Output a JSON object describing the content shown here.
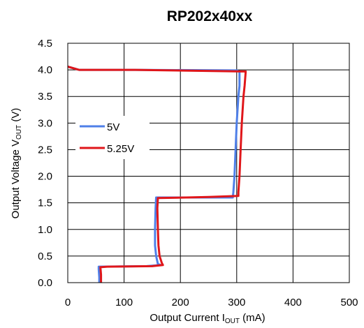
{
  "chart_data": {
    "type": "line",
    "title": "RP202x40xx",
    "xlabel": {
      "main": "Output Current I",
      "sub": "OUT",
      "unit": " (mA)"
    },
    "ylabel": {
      "main": "Output Voltage V",
      "sub": "OUT",
      "unit": " (V)"
    },
    "xlim": [
      0,
      500
    ],
    "ylim": [
      0,
      4.5
    ],
    "x_ticks": [
      0,
      100,
      200,
      300,
      400,
      500
    ],
    "x_tick_labels": [
      "0",
      "100",
      "200",
      "300",
      "400",
      "500"
    ],
    "y_ticks": [
      0,
      0.5,
      1.0,
      1.5,
      2.0,
      2.5,
      3.0,
      3.5,
      4.0,
      4.5
    ],
    "y_tick_labels": [
      "0.0",
      "0.5",
      "1.0",
      "1.5",
      "2.0",
      "2.5",
      "3.0",
      "3.5",
      "4.0",
      "4.5"
    ],
    "grid": true,
    "legend_position": "left",
    "series": [
      {
        "name": "5V",
        "color": "#4f7fe8",
        "points": [
          [
            0,
            4.06
          ],
          [
            20,
            4.0
          ],
          [
            120,
            4.0
          ],
          [
            300,
            3.99
          ],
          [
            305,
            3.97
          ],
          [
            305,
            3.7
          ],
          [
            303,
            3.5
          ],
          [
            300,
            3.0
          ],
          [
            298,
            2.5
          ],
          [
            296,
            2.0
          ],
          [
            294,
            1.7
          ],
          [
            293,
            1.6
          ],
          [
            220,
            1.6
          ],
          [
            157,
            1.6
          ],
          [
            156,
            1.4
          ],
          [
            155,
            1.0
          ],
          [
            155,
            0.7
          ],
          [
            157,
            0.5
          ],
          [
            160,
            0.35
          ],
          [
            165,
            0.33
          ],
          [
            140,
            0.31
          ],
          [
            55,
            0.3
          ],
          [
            55,
            0.25
          ],
          [
            56,
            0.1
          ],
          [
            56,
            0.0
          ]
        ]
      },
      {
        "name": "5.25V",
        "color": "#e0161a",
        "points": [
          [
            0,
            4.06
          ],
          [
            20,
            4.0
          ],
          [
            120,
            4.0
          ],
          [
            310,
            3.97
          ],
          [
            316,
            3.97
          ],
          [
            314,
            3.7
          ],
          [
            312,
            3.5
          ],
          [
            309,
            3.0
          ],
          [
            307,
            2.5
          ],
          [
            305,
            2.0
          ],
          [
            303,
            1.7
          ],
          [
            303,
            1.63
          ],
          [
            250,
            1.61
          ],
          [
            210,
            1.6
          ],
          [
            160,
            1.59
          ],
          [
            159,
            1.4
          ],
          [
            160,
            1.0
          ],
          [
            161,
            0.7
          ],
          [
            163,
            0.5
          ],
          [
            167,
            0.37
          ],
          [
            169,
            0.33
          ],
          [
            150,
            0.31
          ],
          [
            70,
            0.3
          ],
          [
            58,
            0.29
          ],
          [
            59,
            0.15
          ],
          [
            59,
            0.0
          ]
        ]
      }
    ]
  }
}
